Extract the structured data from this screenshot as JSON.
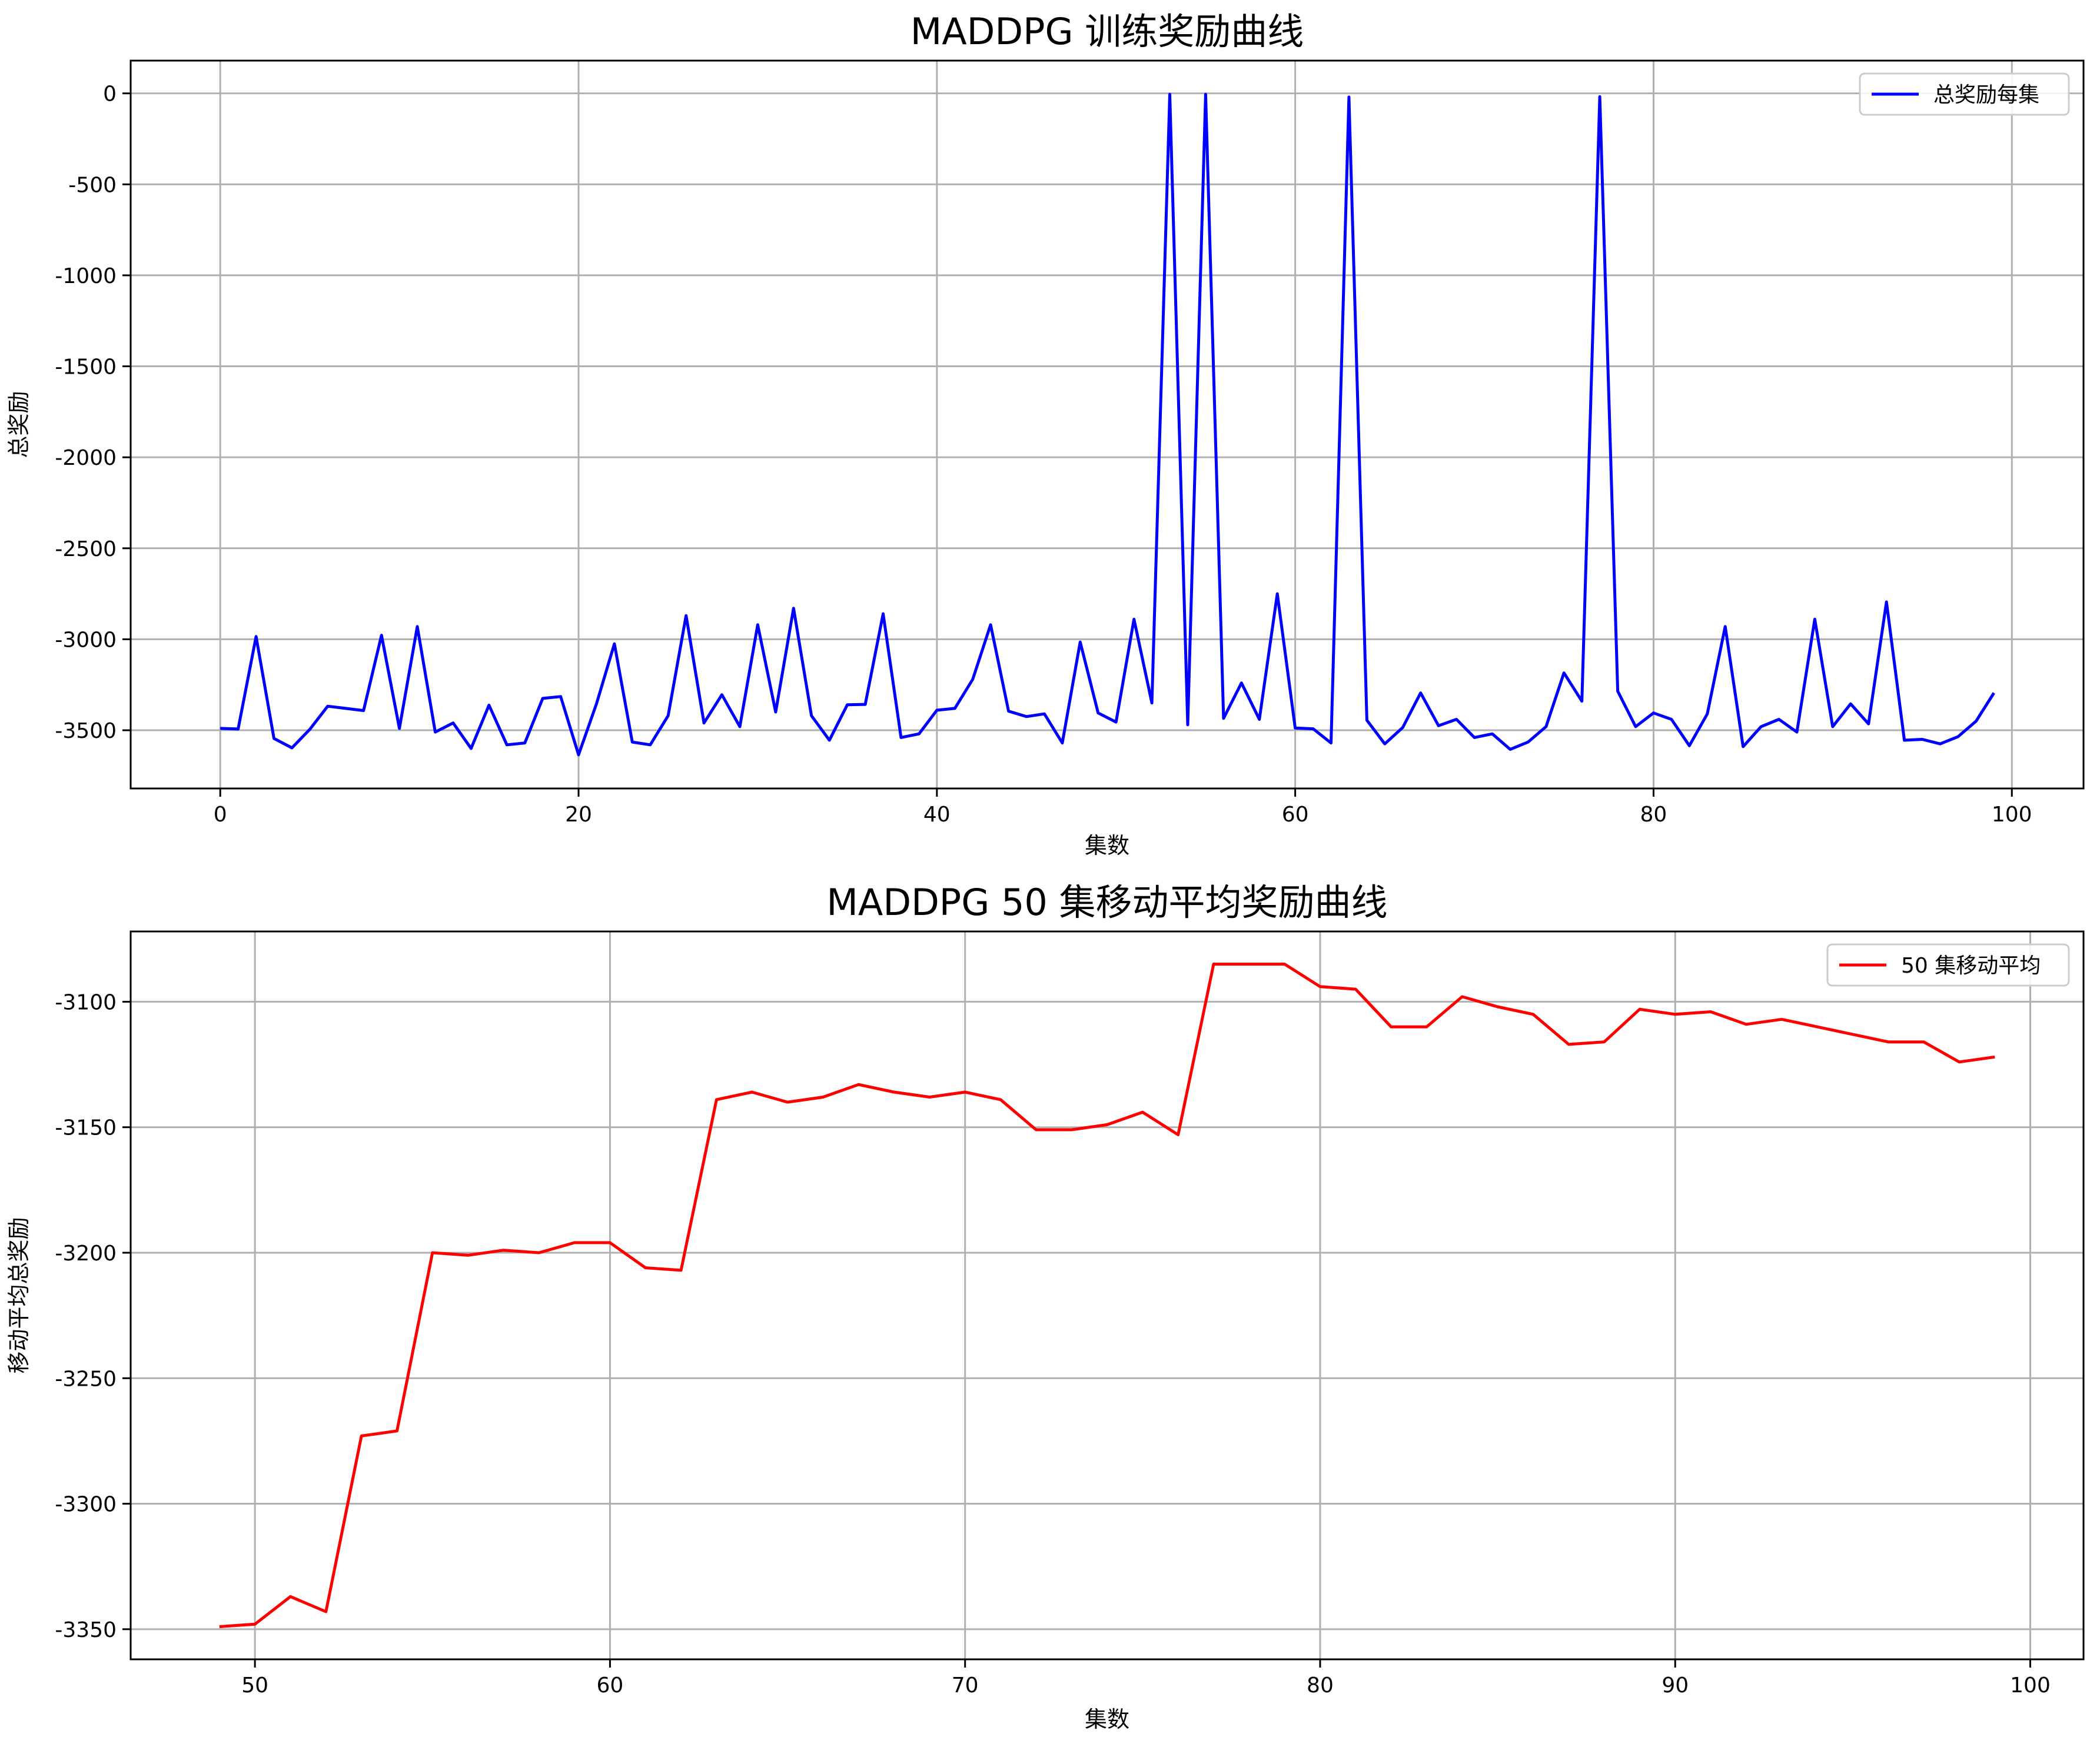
{
  "chart_data": [
    {
      "type": "line",
      "title": "MADDPG 训练奖励曲线",
      "xlabel": "集数",
      "ylabel": "总奖励",
      "xlim": [
        -5,
        104
      ],
      "ylim": [
        -3820,
        180
      ],
      "xticks": [
        0,
        20,
        40,
        60,
        80,
        100
      ],
      "yticks": [
        0,
        -500,
        -1000,
        -1500,
        -2000,
        -2500,
        -3000,
        -3500
      ],
      "grid": true,
      "legend": "top-right",
      "series": [
        {
          "name": "总奖励每集",
          "color": "#0000ff",
          "x": [
            0,
            1,
            2,
            3,
            4,
            5,
            6,
            7,
            8,
            9,
            10,
            11,
            12,
            13,
            14,
            15,
            16,
            17,
            18,
            19,
            20,
            21,
            22,
            23,
            24,
            25,
            26,
            27,
            28,
            29,
            30,
            31,
            32,
            33,
            34,
            35,
            36,
            37,
            38,
            39,
            40,
            41,
            42,
            43,
            44,
            45,
            46,
            47,
            48,
            49,
            50,
            51,
            52,
            53,
            54,
            55,
            56,
            57,
            58,
            59,
            60,
            61,
            62,
            63,
            64,
            65,
            66,
            67,
            68,
            69,
            70,
            71,
            72,
            73,
            74,
            75,
            76,
            77,
            78,
            79,
            80,
            81,
            82,
            83,
            84,
            85,
            86,
            87,
            88,
            89,
            90,
            91,
            92,
            93,
            94,
            95,
            96,
            97,
            98,
            99
          ],
          "values": [
            -3490,
            -3493,
            -2985,
            -3545,
            -3597,
            -3495,
            -3368,
            -3380,
            -3392,
            -2978,
            -3490,
            -2930,
            -3510,
            -3460,
            -3600,
            -3362,
            -3580,
            -3570,
            -3325,
            -3315,
            -3635,
            -3355,
            -3025,
            -3565,
            -3580,
            -3420,
            -2870,
            -3460,
            -3305,
            -3480,
            -2920,
            -3400,
            -2830,
            -3420,
            -3555,
            -3360,
            -3358,
            -2860,
            -3540,
            -3520,
            -3390,
            -3380,
            -3220,
            -2920,
            -3395,
            -3425,
            -3410,
            -3570,
            -3015,
            -3405,
            -3455,
            -2890,
            -3350,
            -5,
            -3470,
            -5,
            -3435,
            -3240,
            -3440,
            -2750,
            -3488,
            -3492,
            -3570,
            -20,
            -3445,
            -3575,
            -3485,
            -3295,
            -3475,
            -3440,
            -3540,
            -3520,
            -3605,
            -3565,
            -3480,
            -3185,
            -3340,
            -18,
            -3285,
            -3480,
            -3405,
            -3440,
            -3585,
            -3410,
            -2930,
            -3590,
            -3480,
            -3440,
            -3510,
            -2890,
            -3480,
            -3355,
            -3465,
            -2795,
            -3555,
            -3550,
            -3575,
            -3535,
            -3450,
            -3295
          ]
        }
      ]
    },
    {
      "type": "line",
      "title": "MADDPG 50 集移动平均奖励曲线",
      "xlabel": "集数",
      "ylabel": "移动平均总奖励",
      "xlim": [
        46.5,
        101.5
      ],
      "ylim": [
        -3362,
        -3072
      ],
      "xticks": [
        50,
        60,
        70,
        80,
        90,
        100
      ],
      "yticks": [
        -3100,
        -3150,
        -3200,
        -3250,
        -3300,
        -3350
      ],
      "grid": true,
      "legend": "top-right",
      "series": [
        {
          "name": "50 集移动平均",
          "color": "#ff0000",
          "x": [
            49,
            50,
            51,
            52,
            53,
            54,
            55,
            56,
            57,
            58,
            59,
            60,
            61,
            62,
            63,
            64,
            65,
            66,
            67,
            68,
            69,
            70,
            71,
            72,
            73,
            74,
            75,
            76,
            77,
            78,
            79,
            80,
            81,
            82,
            83,
            84,
            85,
            86,
            87,
            88,
            89,
            90,
            91,
            92,
            93,
            94,
            95,
            96,
            97,
            98,
            99
          ],
          "values": [
            -3349,
            -3348,
            -3337,
            -3343,
            -3273,
            -3271,
            -3200,
            -3201,
            -3199,
            -3200,
            -3196,
            -3196,
            -3206,
            -3207,
            -3139,
            -3136,
            -3140,
            -3138,
            -3133,
            -3136,
            -3138,
            -3136,
            -3139,
            -3151,
            -3151,
            -3149,
            -3144,
            -3153,
            -3085,
            -3085,
            -3085,
            -3094,
            -3095,
            -3110,
            -3110,
            -3098,
            -3102,
            -3105,
            -3117,
            -3116,
            -3103,
            -3105,
            -3104,
            -3109,
            -3107,
            -3110,
            -3113,
            -3116,
            -3116,
            -3124,
            -3122
          ]
        }
      ]
    }
  ]
}
